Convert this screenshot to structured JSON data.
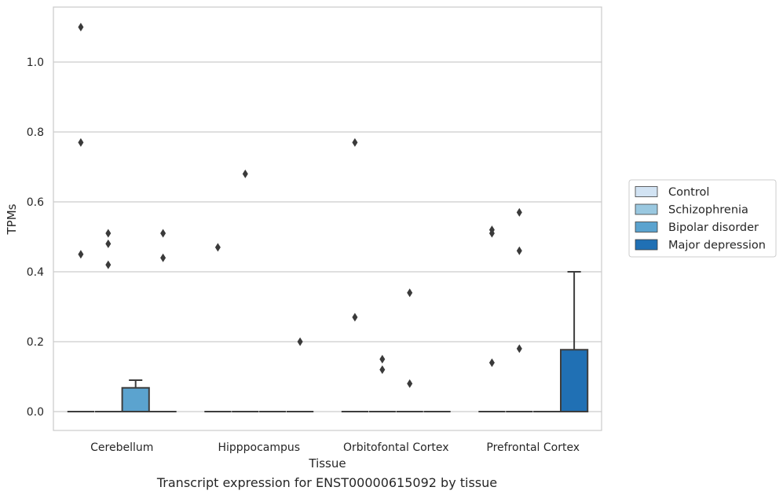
{
  "caption": "Transcript expression for ENST00000615092 by tissue",
  "chart_data": {
    "type": "box",
    "xlabel": "Tissue",
    "ylabel": "TPMs",
    "ylim": [
      -0.055,
      1.16
    ],
    "yticks": [
      0.0,
      0.2,
      0.4,
      0.6,
      0.8,
      1.0
    ],
    "ytick_labels": [
      "0.0",
      "0.2",
      "0.4",
      "0.6",
      "0.8",
      "1.0"
    ],
    "grid": true,
    "legend_placement": "center-right-outside",
    "categories": [
      "Cerebellum",
      "Hipppocampus",
      "Orbitofontal Cortex",
      "Prefrontal Cortex"
    ],
    "series": [
      {
        "name": "Control",
        "color": "#d2e3f3",
        "boxes": [
          {
            "q1": 0,
            "median": 0,
            "q3": 0,
            "whisker_low": 0,
            "whisker_high": 0,
            "outliers": [
              1.1,
              0.77,
              0.45
            ]
          },
          {
            "q1": 0,
            "median": 0,
            "q3": 0,
            "whisker_low": 0,
            "whisker_high": 0,
            "outliers": [
              0.47
            ]
          },
          {
            "q1": 0,
            "median": 0,
            "q3": 0,
            "whisker_low": 0,
            "whisker_high": 0,
            "outliers": [
              0.77,
              0.27
            ]
          },
          {
            "q1": 0,
            "median": 0,
            "q3": 0,
            "whisker_low": 0,
            "whisker_high": 0,
            "outliers": [
              0.52,
              0.51,
              0.14
            ]
          }
        ]
      },
      {
        "name": "Schizophrenia",
        "color": "#9ac8e0",
        "boxes": [
          {
            "q1": 0,
            "median": 0,
            "q3": 0,
            "whisker_low": 0,
            "whisker_high": 0,
            "outliers": [
              0.51,
              0.48,
              0.42
            ]
          },
          {
            "q1": 0,
            "median": 0,
            "q3": 0,
            "whisker_low": 0,
            "whisker_high": 0,
            "outliers": [
              0.68
            ]
          },
          {
            "q1": 0,
            "median": 0,
            "q3": 0,
            "whisker_low": 0,
            "whisker_high": 0,
            "outliers": [
              0.15,
              0.12
            ]
          },
          {
            "q1": 0,
            "median": 0,
            "q3": 0,
            "whisker_low": 0,
            "whisker_high": 0,
            "outliers": [
              0.57,
              0.46,
              0.18
            ]
          }
        ]
      },
      {
        "name": "Bipolar disorder",
        "color": "#5ba3cf",
        "boxes": [
          {
            "q1": 0,
            "median": 0,
            "q3": 0.068,
            "whisker_low": 0,
            "whisker_high": 0.09,
            "outliers": []
          },
          {
            "q1": 0,
            "median": 0,
            "q3": 0,
            "whisker_low": 0,
            "whisker_high": 0,
            "outliers": []
          },
          {
            "q1": 0,
            "median": 0,
            "q3": 0,
            "whisker_low": 0,
            "whisker_high": 0,
            "outliers": [
              0.34,
              0.08
            ]
          },
          {
            "q1": 0,
            "median": 0,
            "q3": 0,
            "whisker_low": 0,
            "whisker_high": 0,
            "outliers": []
          }
        ]
      },
      {
        "name": "Major depression",
        "color": "#2070b4",
        "boxes": [
          {
            "q1": 0,
            "median": 0,
            "q3": 0,
            "whisker_low": 0,
            "whisker_high": 0,
            "outliers": [
              0.51,
              0.44
            ]
          },
          {
            "q1": 0,
            "median": 0,
            "q3": 0,
            "whisker_low": 0,
            "whisker_high": 0,
            "outliers": [
              0.2
            ]
          },
          {
            "q1": 0,
            "median": 0,
            "q3": 0,
            "whisker_low": 0,
            "whisker_high": 0,
            "outliers": []
          },
          {
            "q1": 0,
            "median": 0,
            "q3": 0.177,
            "whisker_low": 0,
            "whisker_high": 0.4,
            "outliers": []
          }
        ]
      }
    ]
  }
}
